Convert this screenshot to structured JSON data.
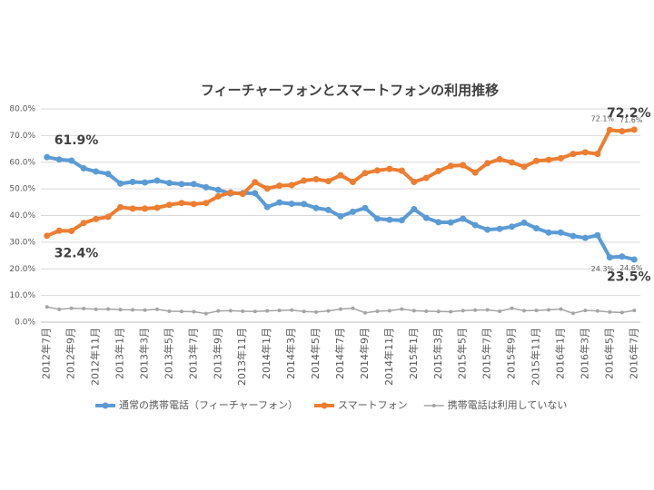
{
  "chart_data": {
    "type": "line",
    "title": "フィーチャーフォンとスマートフォンの利用推移",
    "categories": [
      "2012年7月",
      null,
      "2012年9月",
      null,
      "2012年11月",
      null,
      "2013年1月",
      null,
      "2013年3月",
      null,
      "2013年5月",
      null,
      "2013年7月",
      null,
      "2013年9月",
      null,
      "2013年11月",
      null,
      "2014年1月",
      null,
      "2014年3月",
      null,
      "2014年5月",
      null,
      "2014年7月",
      null,
      "2014年9月",
      null,
      "2014年11月",
      null,
      "2015年1月",
      null,
      "2015年3月",
      null,
      "2015年5月",
      null,
      "2015年7月",
      null,
      "2015年9月",
      null,
      "2015年11月",
      null,
      "2016年1月",
      null,
      "2016年3月",
      null,
      "2016年5月",
      null,
      "2016年7月"
    ],
    "series": [
      {
        "name": "通常の携帯電話（フィーチャーフォン）",
        "color": "#5b9bd5",
        "values": [
          61.9,
          61.0,
          60.6,
          57.7,
          56.5,
          55.6,
          52.0,
          52.6,
          52.4,
          53.1,
          52.2,
          51.8,
          51.8,
          50.6,
          49.6,
          48.3,
          48.4,
          48.4,
          43.2,
          44.9,
          44.4,
          44.3,
          42.8,
          42.1,
          39.7,
          41.4,
          42.8,
          38.8,
          38.4,
          38.2,
          42.4,
          39.1,
          37.5,
          37.4,
          38.8,
          36.4,
          34.7,
          35.0,
          35.8,
          37.3,
          35.2,
          33.6,
          33.6,
          32.3,
          31.6,
          32.6,
          24.3,
          24.6,
          23.5
        ],
        "value_labels": [
          "61.9%",
          null,
          null,
          null,
          null,
          null,
          null,
          null,
          null,
          null,
          null,
          null,
          null,
          null,
          null,
          null,
          null,
          null,
          null,
          null,
          null,
          null,
          null,
          null,
          null,
          null,
          null,
          null,
          null,
          null,
          null,
          null,
          null,
          null,
          null,
          null,
          null,
          null,
          null,
          null,
          null,
          null,
          null,
          null,
          null,
          null,
          "24.3%",
          "24.6%",
          "23.5%"
        ]
      },
      {
        "name": "スマートフォン",
        "color": "#ed7d31",
        "values": [
          32.4,
          34.3,
          34.2,
          37.2,
          38.7,
          39.5,
          43.1,
          42.6,
          42.6,
          42.9,
          44.0,
          44.7,
          44.3,
          44.7,
          47.2,
          48.6,
          48.1,
          52.5,
          50.1,
          51.2,
          51.4,
          53.1,
          53.6,
          52.9,
          55.1,
          52.6,
          55.9,
          56.9,
          57.5,
          56.8,
          52.6,
          54.1,
          56.7,
          58.6,
          58.9,
          56.1,
          59.6,
          61.1,
          59.9,
          58.3,
          60.5,
          60.9,
          61.5,
          63.1,
          63.7,
          63.1,
          72.1,
          71.6,
          72.2
        ],
        "value_labels": [
          "32.4%",
          null,
          null,
          null,
          null,
          null,
          null,
          null,
          null,
          null,
          null,
          null,
          null,
          null,
          null,
          null,
          null,
          null,
          null,
          null,
          null,
          null,
          null,
          null,
          null,
          null,
          null,
          null,
          null,
          null,
          null,
          null,
          null,
          null,
          null,
          null,
          null,
          null,
          null,
          null,
          null,
          null,
          null,
          null,
          null,
          null,
          "72.1%",
          "71.6%",
          "72.2%"
        ]
      },
      {
        "name": "携帯電話は利用していない",
        "color": "#a5a5a5",
        "values": [
          5.7,
          4.8,
          5.2,
          5.1,
          4.8,
          4.9,
          4.7,
          4.6,
          4.5,
          4.8,
          4.1,
          4.0,
          3.9,
          3.2,
          4.2,
          4.3,
          4.1,
          4.0,
          4.2,
          4.4,
          4.5,
          4.0,
          3.8,
          4.2,
          4.9,
          5.2,
          3.5,
          4.1,
          4.3,
          4.9,
          4.3,
          4.1,
          4.0,
          3.9,
          4.3,
          4.5,
          4.6,
          4.1,
          5.2,
          4.3,
          4.4,
          4.6,
          4.9,
          3.3,
          4.4,
          4.2,
          3.8,
          3.6,
          4.4
        ]
      }
    ],
    "ylim": [
      0,
      80
    ],
    "yticks": [
      {
        "value": 0,
        "label": "0.0%"
      },
      {
        "value": 10,
        "label": "10.0%"
      },
      {
        "value": 20,
        "label": "20.0%"
      },
      {
        "value": 30,
        "label": "30.0%"
      },
      {
        "value": 40,
        "label": "40.0%"
      },
      {
        "value": 50,
        "label": "50.0%"
      },
      {
        "value": 60,
        "label": "60.0%"
      },
      {
        "value": 70,
        "label": "70.0%"
      },
      {
        "value": 80,
        "label": "80.0%"
      }
    ],
    "grid": true,
    "legend": "bottom"
  }
}
